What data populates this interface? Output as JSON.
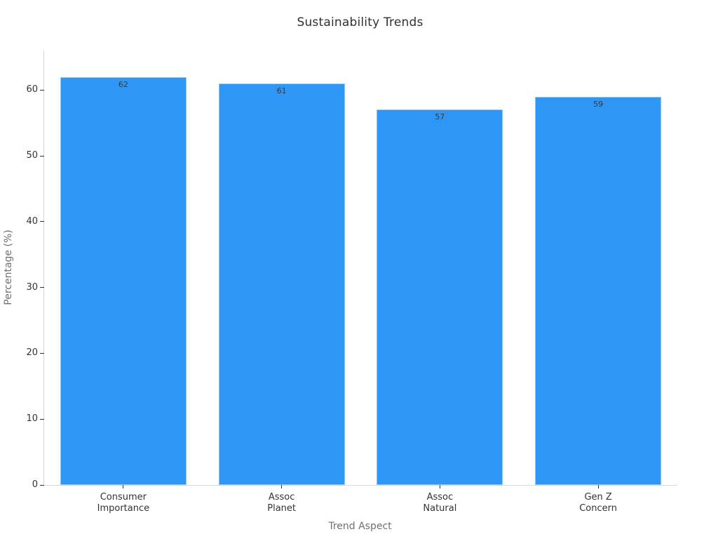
{
  "chart_data": {
    "type": "bar",
    "title": "Sustainability Trends",
    "xlabel": "Trend Aspect",
    "ylabel": "Percentage (%)",
    "categories": [
      "Consumer\nImportance",
      "Assoc\nPlanet",
      "Assoc\nNatural",
      "Gen Z\nConcern"
    ],
    "values": [
      62,
      61,
      57,
      59
    ],
    "value_labels": [
      "62",
      "61",
      "57",
      "59"
    ],
    "ylim": [
      0,
      66
    ],
    "yticks": [
      0,
      10,
      20,
      30,
      40,
      50,
      60
    ],
    "grid": false,
    "legend": "none",
    "colors": {
      "bar_fill": "#2E96F5",
      "bar_edge": "#8EC6F8",
      "axis_spine": "#D8D8D8",
      "tick_mark": "#333333",
      "tick_label": "#333333",
      "value_label": "#3A3A3A",
      "axis_title": "#707070",
      "chart_title": "#303030",
      "background": "#FFFFFF"
    }
  }
}
